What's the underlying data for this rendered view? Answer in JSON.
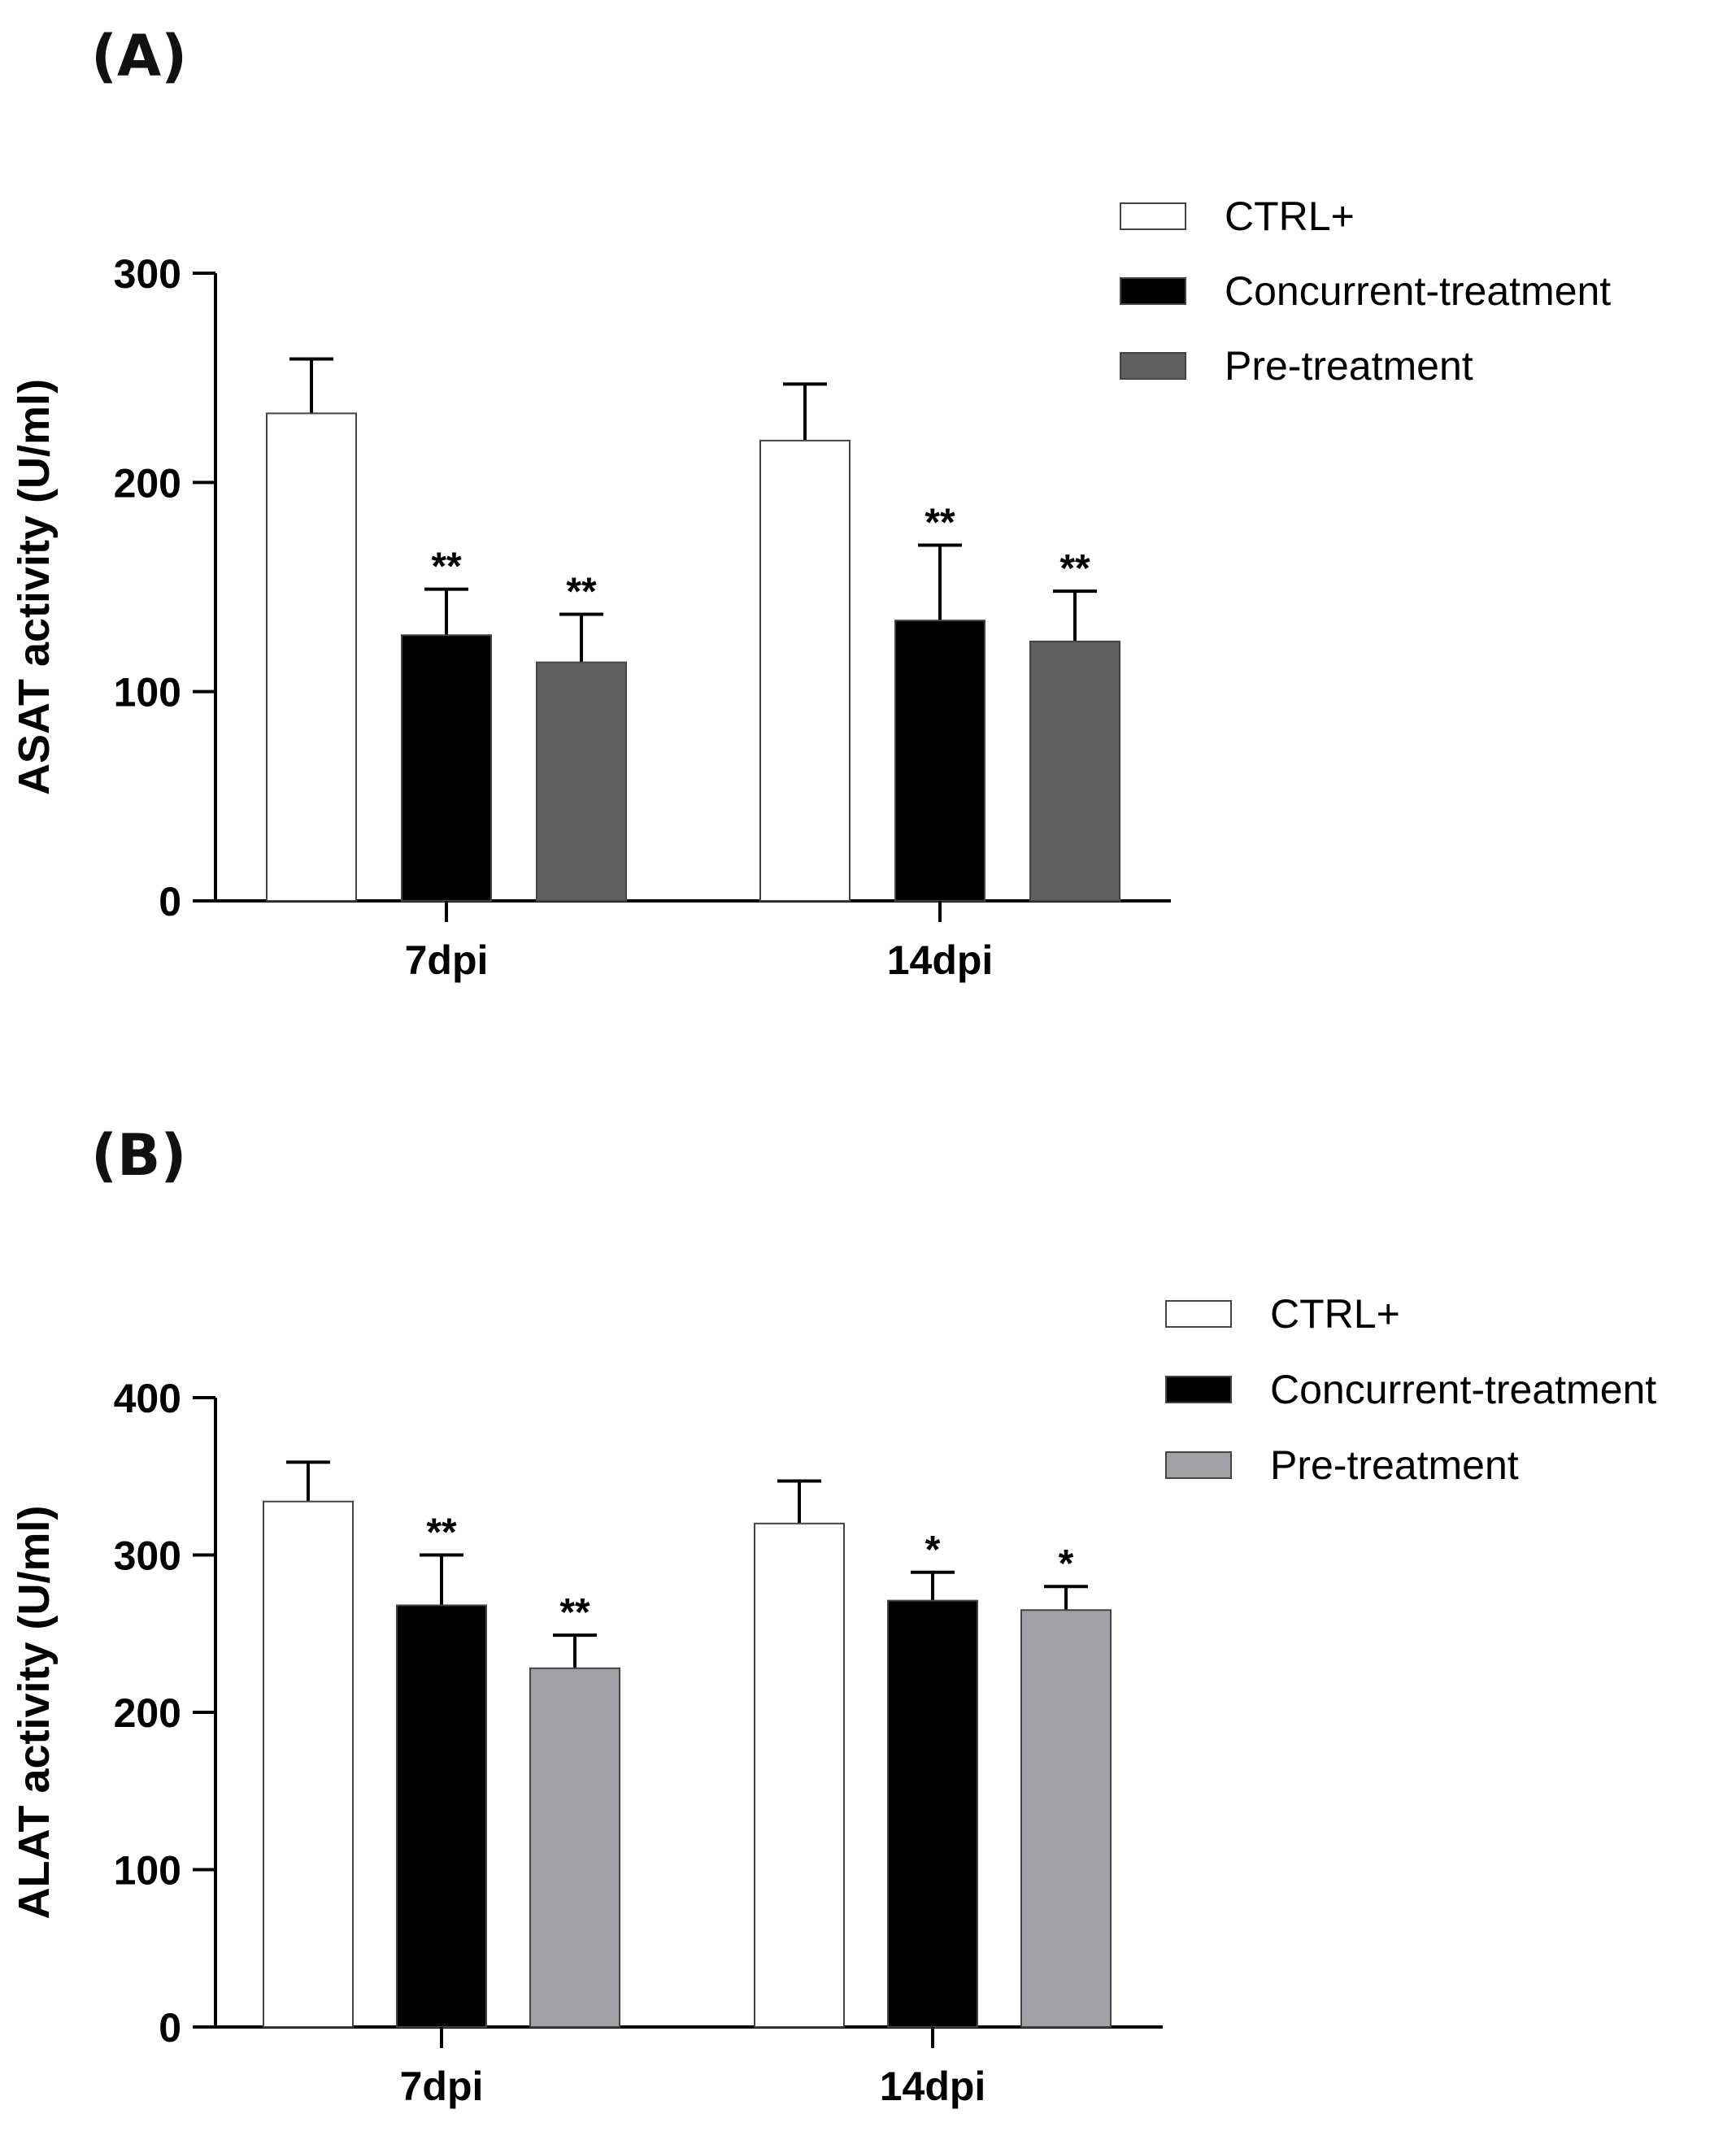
{
  "chart_data": [
    {
      "panel_label": "(A)",
      "type": "bar",
      "categories": [
        "7dpi",
        "14dpi"
      ],
      "ylabel": "ASAT activity (U/ml)",
      "xlabel": "",
      "ylim": [
        0,
        300
      ],
      "yticks": [
        0,
        100,
        200,
        300
      ],
      "legend_position": "top-right",
      "series": [
        {
          "name": "CTRL+",
          "color": "#ffffff",
          "values": [
            233,
            220
          ],
          "errors": [
            26,
            27
          ],
          "annotations": [
            "",
            ""
          ]
        },
        {
          "name": "Concurrent-treatment",
          "color": "#000000",
          "values": [
            127,
            134
          ],
          "errors": [
            22,
            36
          ],
          "annotations": [
            "**",
            "**"
          ]
        },
        {
          "name": "Pre-treatment",
          "color": "#606060",
          "values": [
            114,
            124
          ],
          "errors": [
            23,
            24
          ],
          "annotations": [
            "**",
            "**"
          ]
        }
      ]
    },
    {
      "panel_label": "(B)",
      "type": "bar",
      "categories": [
        "7dpi",
        "14dpi"
      ],
      "ylabel": "ALAT activity (U/ml)",
      "xlabel": "",
      "ylim": [
        0,
        400
      ],
      "yticks": [
        0,
        100,
        200,
        300,
        400
      ],
      "legend_position": "top-right",
      "series": [
        {
          "name": "CTRL+",
          "color": "#ffffff",
          "values": [
            334,
            320
          ],
          "errors": [
            25,
            27
          ],
          "annotations": [
            "",
            ""
          ]
        },
        {
          "name": "Concurrent-treatment",
          "color": "#000000",
          "values": [
            268,
            271
          ],
          "errors": [
            32,
            18
          ],
          "annotations": [
            "**",
            "*"
          ]
        },
        {
          "name": "Pre-treatment",
          "color": "#a0a0a6",
          "values": [
            228,
            265
          ],
          "errors": [
            21,
            15
          ],
          "annotations": [
            "**",
            "*"
          ]
        }
      ]
    }
  ]
}
